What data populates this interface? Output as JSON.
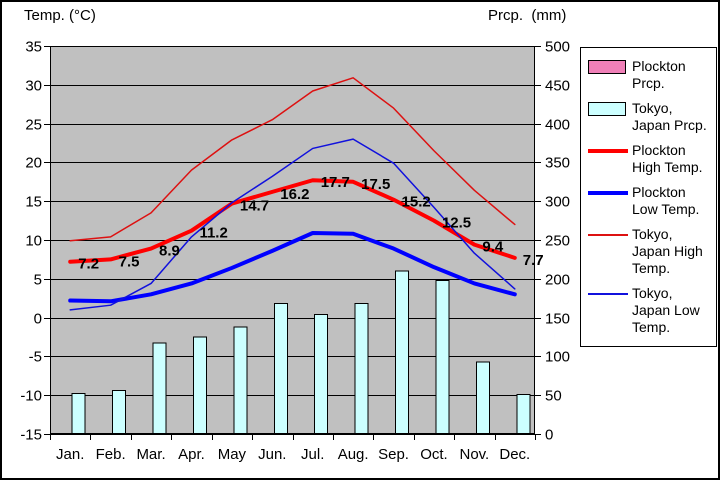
{
  "colors": {
    "plot_background": "#C0C0C0",
    "gridline": "#000000",
    "bar_fill_tokyo": "#CCFFFF",
    "bar_fill_plockton": "#F080B8",
    "plockton_high": "#FF0000",
    "plockton_low": "#0000FF",
    "tokyo_high": "#DD1111",
    "tokyo_low": "#1111DD"
  },
  "chart_data": {
    "type": "combo (bar + line climate chart)",
    "months": [
      "Jan.",
      "Feb.",
      "Mar.",
      "Apr.",
      "May",
      "Jun.",
      "Jul.",
      "Aug.",
      "Sep.",
      "Oct.",
      "Nov.",
      "Dec."
    ],
    "temp_axis": {
      "title": "Temp. (°C)",
      "min": -15,
      "max": 35,
      "step": 5,
      "ticks": [
        "35",
        "30",
        "25",
        "20",
        "15",
        "10",
        "5",
        "0",
        "-5",
        "-10",
        "-15"
      ]
    },
    "prcp_axis": {
      "title": "Prcp.  (mm)",
      "min": 0,
      "max": 500,
      "step": 50,
      "ticks": [
        "500",
        "450",
        "400",
        "350",
        "300",
        "250",
        "200",
        "150",
        "100",
        "50",
        "0"
      ]
    },
    "grid": "horizontal gridlines every 5°C / 50mm",
    "legend_position": "right",
    "series": [
      {
        "name": "Plockton Prcp.",
        "type": "bar",
        "axis": "prcp",
        "bars_visible": false,
        "values": []
      },
      {
        "name": "Tokyo, Japan Prcp.",
        "type": "bar",
        "axis": "prcp",
        "bars_visible": true,
        "values": [
          52,
          56,
          117,
          125,
          138,
          168,
          154,
          168,
          210,
          198,
          93,
          51
        ]
      },
      {
        "name": "Plockton High Temp.",
        "type": "line-thick",
        "axis": "temp",
        "values": [
          7.2,
          7.5,
          8.9,
          11.2,
          14.7,
          16.2,
          17.7,
          17.5,
          15.2,
          12.5,
          9.4,
          7.7
        ],
        "point_labels": [
          "7.2",
          "7.5",
          "8.9",
          "11.2",
          "14.7",
          "16.2",
          "17.7",
          "17.5",
          "15.2",
          "12.5",
          "9.4",
          "7.7"
        ]
      },
      {
        "name": "Plockton Low Temp.",
        "type": "line-thick",
        "axis": "temp",
        "values": [
          2.2,
          2.1,
          3.0,
          4.4,
          6.4,
          8.6,
          10.9,
          10.8,
          8.9,
          6.5,
          4.4,
          3.0
        ],
        "point_labels": []
      },
      {
        "name": "Tokyo, Japan High Temp.",
        "type": "line-thin",
        "axis": "temp",
        "values": [
          9.9,
          10.4,
          13.5,
          19.0,
          22.9,
          25.5,
          29.2,
          30.9,
          27.0,
          21.5,
          16.4,
          12.0
        ],
        "point_labels": []
      },
      {
        "name": "Tokyo, Japan Low Temp.",
        "type": "line-thin",
        "axis": "temp",
        "values": [
          1.0,
          1.6,
          4.4,
          10.4,
          14.8,
          18.2,
          21.8,
          23.0,
          19.9,
          14.2,
          8.3,
          3.7
        ],
        "point_labels": []
      }
    ]
  },
  "legend": {
    "items": [
      {
        "label": "Plockton Prcp.",
        "swatch": "bar",
        "color": "#F080B8"
      },
      {
        "label": "Tokyo, Japan Prcp.",
        "swatch": "bar",
        "color": "#CCFFFF"
      },
      {
        "label": "Plockton High Temp.",
        "swatch": "line-thick",
        "color": "#FF0000"
      },
      {
        "label": "Plockton Low Temp.",
        "swatch": "line-thick",
        "color": "#0000FF"
      },
      {
        "label": "Tokyo, Japan High Temp.",
        "swatch": "line-thin",
        "color": "#DD1111"
      },
      {
        "label": "Tokyo, Japan Low Temp.",
        "swatch": "line-thin",
        "color": "#1111DD"
      }
    ]
  }
}
